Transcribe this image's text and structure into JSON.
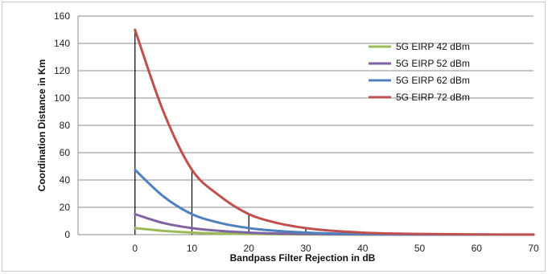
{
  "chart_data": {
    "type": "line",
    "xlabel": "Bandpass  Filter Rejection  in dB",
    "ylabel": "Coordination  Distance  in Km",
    "xlim": [
      -10,
      70
    ],
    "ylim": [
      0,
      160
    ],
    "x_ticks": [
      0,
      10,
      20,
      30,
      40,
      50,
      60,
      70
    ],
    "y_ticks": [
      0,
      20,
      40,
      60,
      80,
      100,
      120,
      140,
      160
    ],
    "grid": "horizontal",
    "legend_position": "top-right",
    "x": [
      0,
      5,
      10,
      15,
      20,
      25,
      30,
      35,
      40,
      45,
      50,
      55,
      60,
      65,
      70
    ],
    "series": [
      {
        "name": "5G EIRP 42 dBm",
        "color": "#9bbb59",
        "values": [
          4.8,
          2.7,
          1.5,
          0.8,
          0.5,
          0.3,
          0.15,
          0.1,
          0.05,
          0.03,
          0.02,
          0.01,
          0,
          0,
          0
        ]
      },
      {
        "name": "5G EIRP 52 dBm",
        "color": "#8064a2",
        "values": [
          15,
          8.5,
          4.8,
          2.7,
          1.5,
          0.8,
          0.5,
          0.3,
          0.15,
          0.1,
          0.05,
          0.03,
          0.02,
          0.01,
          0
        ]
      },
      {
        "name": "5G EIRP 62 dBm",
        "color": "#4f81bd",
        "values": [
          47.5,
          28,
          15,
          8.5,
          4.8,
          2.7,
          1.5,
          0.8,
          0.5,
          0.3,
          0.15,
          0.1,
          0.05,
          0.03,
          0.02
        ]
      },
      {
        "name": "5G EIRP 72 dBm",
        "color": "#c0504d",
        "values": [
          150,
          90,
          47.5,
          28,
          15,
          8.5,
          4.8,
          2.7,
          1.5,
          0.8,
          0.5,
          0.3,
          0.15,
          0.1,
          0.05
        ]
      }
    ],
    "annotations": {
      "type": "vertical-drop-lines",
      "color": "#000000",
      "points": [
        {
          "x": 0,
          "y": 150
        },
        {
          "x": 10,
          "y": 47.5
        },
        {
          "x": 20,
          "y": 15
        },
        {
          "x": 30,
          "y": 4.8
        },
        {
          "x": 40,
          "y": 1.5
        }
      ]
    }
  }
}
